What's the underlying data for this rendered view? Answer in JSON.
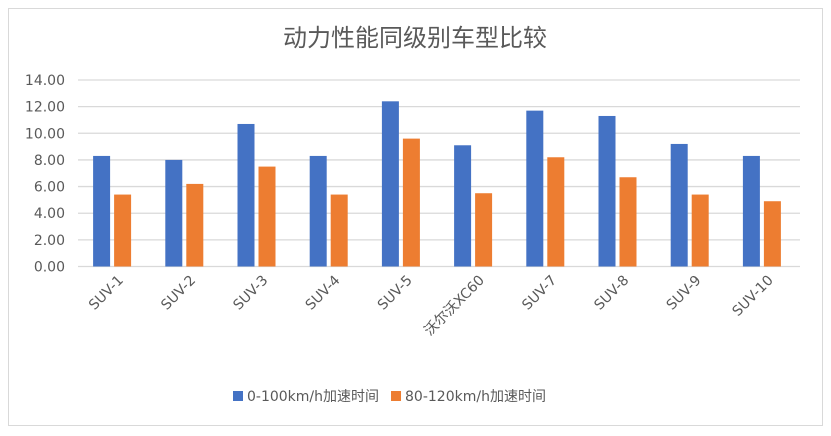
{
  "chart_data": {
    "type": "bar",
    "title": "动力性能同级别车型比较",
    "xlabel": "",
    "ylabel": "",
    "ylim": [
      0,
      14
    ],
    "ytick_step": 2,
    "ytick_labels": [
      "0.00",
      "2.00",
      "4.00",
      "6.00",
      "8.00",
      "10.00",
      "12.00",
      "14.00"
    ],
    "grid": true,
    "legend_position": "bottom",
    "categories": [
      "SUV-1",
      "SUV-2",
      "SUV-3",
      "SUV-4",
      "SUV-5",
      "沃尔沃XC60",
      "SUV-7",
      "SUV-8",
      "SUV-9",
      "SUV-10"
    ],
    "series": [
      {
        "name": "0-100km/h加速时间",
        "color": "#4472C4",
        "values": [
          8.3,
          8.0,
          10.7,
          8.3,
          12.4,
          9.1,
          11.7,
          11.3,
          9.2,
          8.3
        ]
      },
      {
        "name": "80-120km/h加速时间",
        "color": "#ED7D31",
        "values": [
          5.4,
          6.2,
          7.5,
          5.4,
          9.6,
          5.5,
          8.2,
          6.7,
          5.4,
          4.9
        ]
      }
    ]
  }
}
